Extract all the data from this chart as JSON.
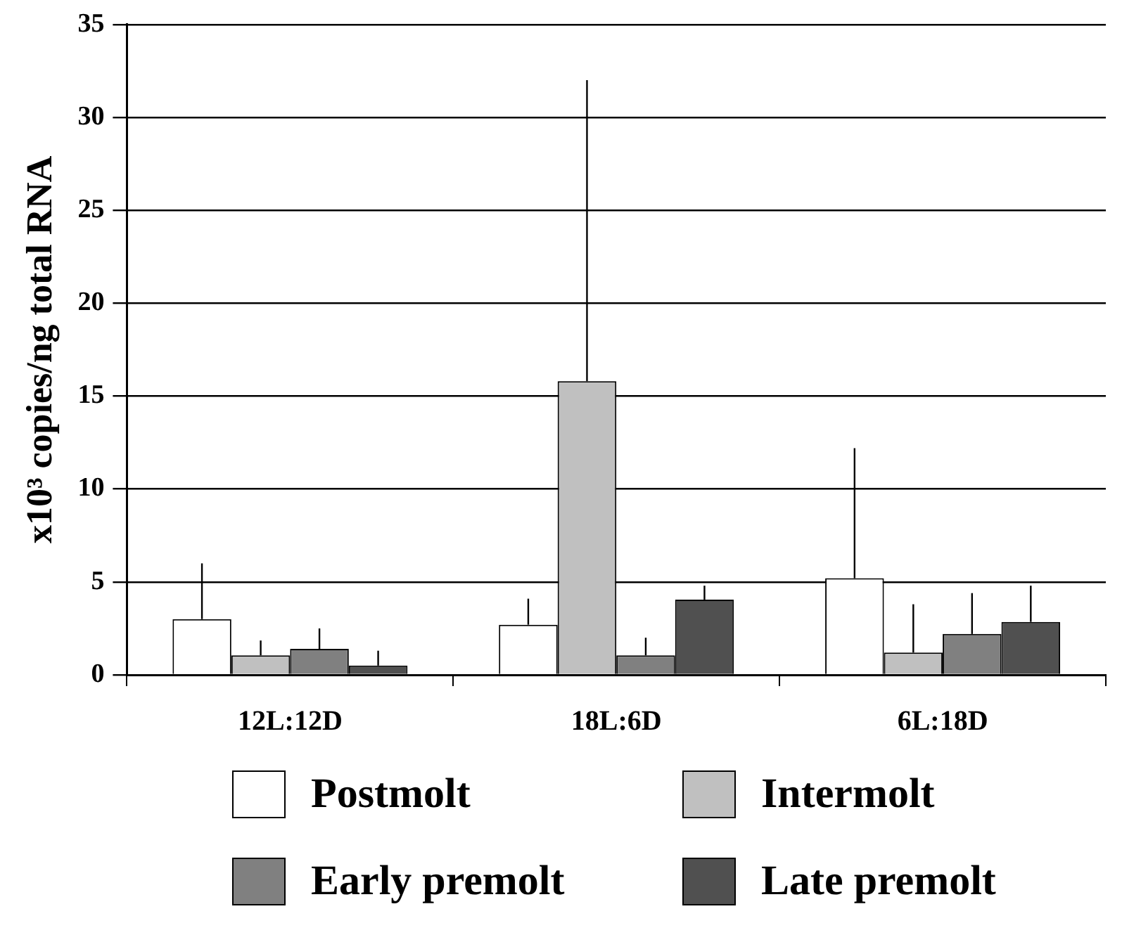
{
  "chart_data": {
    "type": "bar",
    "ylabel": "x10³ copies/ng total RNA",
    "categories": [
      "12L:12D",
      "18L:6D",
      "6L:18D"
    ],
    "series": [
      {
        "name": "Postmolt",
        "color": "#ffffff",
        "values": [
          3.0,
          2.7,
          5.2
        ],
        "errors": [
          [
            3.0,
            6.0
          ],
          [
            2.7,
            4.1
          ],
          [
            5.2,
            12.2
          ]
        ]
      },
      {
        "name": "Intermolt",
        "color": "#c0c0c0",
        "values": [
          1.05,
          15.8,
          1.2
        ],
        "errors": [
          [
            1.05,
            1.85
          ],
          [
            15.8,
            32.0
          ],
          [
            1.2,
            3.8
          ]
        ]
      },
      {
        "name": "Early premolt",
        "color": "#808080",
        "values": [
          1.4,
          1.05,
          2.2
        ],
        "errors": [
          [
            1.4,
            2.5
          ],
          [
            1.05,
            2.0
          ],
          [
            2.2,
            4.4
          ]
        ]
      },
      {
        "name": "Late premolt",
        "color": "#505050",
        "values": [
          0.5,
          4.05,
          2.85
        ],
        "errors": [
          [
            0.5,
            1.3
          ],
          [
            4.05,
            4.8
          ],
          [
            2.85,
            4.8
          ]
        ]
      }
    ],
    "ylim": [
      0,
      35
    ],
    "yticks": [
      0,
      5,
      10,
      15,
      20,
      25,
      30,
      35
    ],
    "grid": "y",
    "legend": "bottom"
  }
}
